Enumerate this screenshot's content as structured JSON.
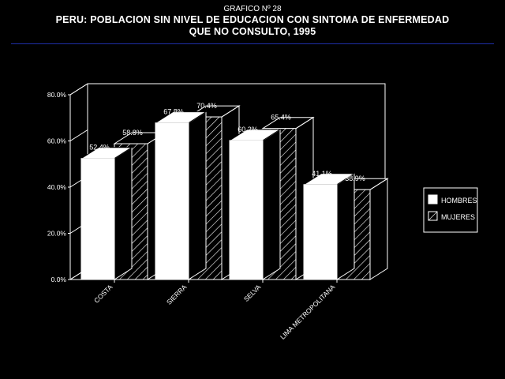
{
  "header": {
    "supertitle": "GRAFICO Nº 28",
    "title_line1": "PERU: POBLACION SIN NIVEL DE EDUCACION CON SINTOMA DE ENFERMEDAD",
    "title_line2": "QUE NO CONSULTO, 1995"
  },
  "colors": {
    "background": "#000000",
    "foreground": "#ffffff",
    "rule": "#1f2fa8"
  },
  "chart_data": {
    "type": "bar",
    "style": "3d-clustered",
    "categories": [
      "COSTA",
      "SIERRA",
      "SELVA",
      "LIMA METROPOLITANA"
    ],
    "series": [
      {
        "name": "HOMBRES",
        "pattern": "solid-white",
        "values": [
          52.4,
          67.8,
          60.2,
          41.1
        ],
        "labels": [
          "52.4%",
          "67.8%",
          "60.2%",
          "41.1%"
        ]
      },
      {
        "name": "MUJERES",
        "pattern": "diagonal-hatch",
        "values": [
          58.8,
          70.4,
          65.4,
          38.9
        ],
        "labels": [
          "58.8%",
          "70.4%",
          "65.4%",
          "38.9%"
        ]
      }
    ],
    "ylim": [
      0,
      80
    ],
    "yticks": [
      0,
      20,
      40,
      60,
      80
    ],
    "ytick_labels": [
      "0.0%",
      "20.0%",
      "40.0%",
      "60.0%",
      "80.0%"
    ],
    "legend": {
      "position": "right",
      "entries": [
        "HOMBRES",
        "MUJERES"
      ]
    },
    "grid": false
  }
}
